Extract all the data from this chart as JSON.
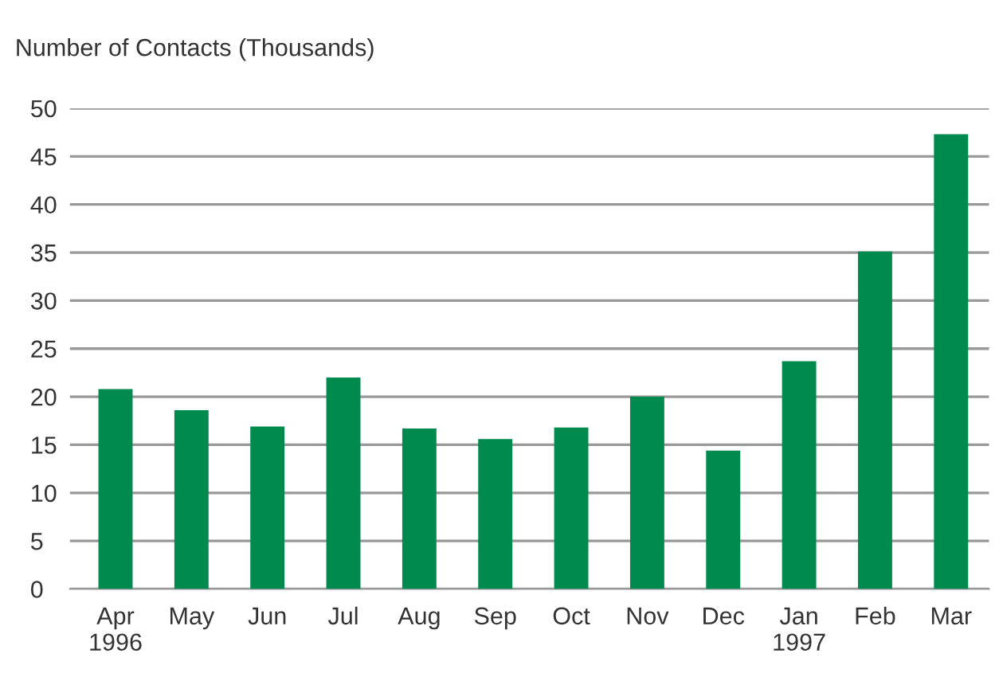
{
  "chart_data": {
    "type": "bar",
    "ylabel": "Number of Contacts (Thousands)",
    "categories": [
      "Apr\n1996",
      "May",
      "Jun",
      "Jul",
      "Aug",
      "Sep",
      "Oct",
      "Nov",
      "Dec",
      "Jan\n1997",
      "Feb",
      "Mar"
    ],
    "values": [
      20.8,
      18.6,
      16.9,
      22.0,
      16.7,
      15.6,
      16.8,
      20.0,
      14.4,
      23.7,
      35.1,
      47.3
    ],
    "color": "#008a4e",
    "ylim": [
      0,
      50
    ],
    "yticks": [
      0,
      5,
      10,
      15,
      20,
      25,
      30,
      35,
      40,
      45,
      50
    ],
    "grid": "y"
  }
}
